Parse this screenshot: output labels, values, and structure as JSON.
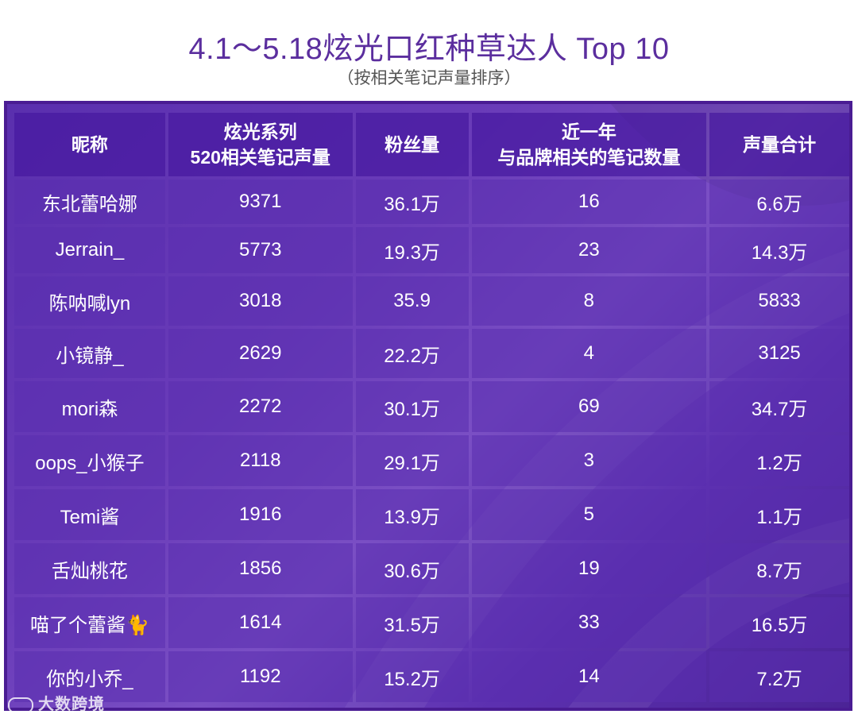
{
  "title": "4.1～5.18炫光口红种草达人 Top 10",
  "subtitle": "（按相关笔记声量排序）",
  "table": {
    "headers": [
      "昵称",
      "炫光系列\n520相关笔记声量",
      "粉丝量",
      "近一年\n与品牌相关的笔记数量",
      "声量合计"
    ],
    "rows": [
      [
        "东北蕾哈娜",
        "9371",
        "36.1万",
        "16",
        "6.6万"
      ],
      [
        "Jerrain_",
        "5773",
        "19.3万",
        "23",
        "14.3万"
      ],
      [
        "陈呐喊lyn",
        "3018",
        "35.9",
        "8",
        "5833"
      ],
      [
        "小镜静_",
        "2629",
        "22.2万",
        "4",
        "3125"
      ],
      [
        "mori森",
        "2272",
        "30.1万",
        "69",
        "34.7万"
      ],
      [
        "oops_小猴子",
        "2118",
        "29.1万",
        "3",
        "1.2万"
      ],
      [
        "Temi酱",
        "1916",
        "13.9万",
        "5",
        "1.1万"
      ],
      [
        "舌灿桃花",
        "1856",
        "30.6万",
        "19",
        "8.7万"
      ],
      [
        "喵了个蕾酱🐈",
        "1614",
        "31.5万",
        "33",
        "16.5万"
      ],
      [
        "你的小乔_",
        "1192",
        "15.2万",
        "14",
        "7.2万"
      ]
    ]
  },
  "watermark": "大数跨境",
  "colors": {
    "title": "#5b2e9e",
    "frame": "#4a1c93",
    "header_bg": "#4619a0",
    "cell_bg": "#5a2daf"
  }
}
